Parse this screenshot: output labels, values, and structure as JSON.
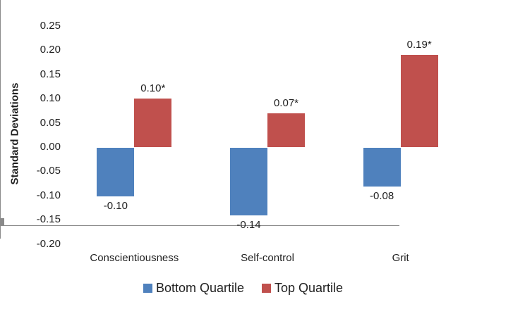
{
  "chart_data": {
    "type": "bar",
    "ylabel": "Standard Deviations",
    "xlabel": "",
    "categories": [
      "Conscientiousness",
      "Self-control",
      "Grit"
    ],
    "series": [
      {
        "name": "Bottom Quartile",
        "color": "#4F81BD",
        "values": [
          -0.1,
          -0.14,
          -0.08
        ],
        "labels": [
          "-0.10",
          "-0.14",
          "-0.08"
        ]
      },
      {
        "name": "Top Quartile",
        "color": "#C0504D",
        "values": [
          0.1,
          0.07,
          0.19
        ],
        "labels": [
          "0.10*",
          "0.07*",
          "0.19*"
        ]
      }
    ],
    "ylim": [
      -0.2,
      0.25
    ],
    "y_ticks": [
      {
        "value": 0.25,
        "label": "0.25"
      },
      {
        "value": 0.2,
        "label": "0.20"
      },
      {
        "value": 0.15,
        "label": "0.15"
      },
      {
        "value": 0.1,
        "label": "0.10"
      },
      {
        "value": 0.05,
        "label": "0.05"
      },
      {
        "value": 0.0,
        "label": "0.00"
      },
      {
        "value": -0.05,
        "label": "-0.05"
      },
      {
        "value": -0.1,
        "label": "-0.10"
      },
      {
        "value": -0.15,
        "label": "-0.15"
      },
      {
        "value": -0.2,
        "label": "-0.20"
      }
    ],
    "grid": false,
    "legend_position": "bottom",
    "colors": {
      "axis": "#8a8a8a",
      "text": "#1f1f1f",
      "background": "#ffffff"
    }
  }
}
